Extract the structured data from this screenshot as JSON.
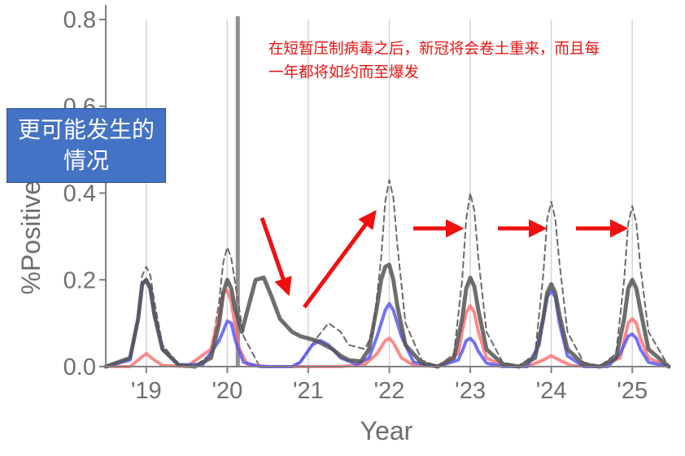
{
  "chart_data": {
    "type": "line",
    "title": "",
    "xlabel": "Year",
    "ylabel": "%Positive ILI",
    "ylim": [
      0,
      0.8
    ],
    "xlim": [
      2018.6,
      2025.55
    ],
    "yticks": [
      0.0,
      0.2,
      0.4,
      0.6,
      0.8
    ],
    "ytick_labels": [
      "0.0",
      "0.2",
      "0.4",
      "0.6",
      "0.8"
    ],
    "xticks": [
      2019.1,
      2020.1,
      2021.1,
      2022.1,
      2023.1,
      2024.1,
      2025.1
    ],
    "xtick_labels": [
      "'19",
      "'20",
      "'21",
      "'22",
      "'23",
      "'24",
      "'25"
    ],
    "grid": "vertical",
    "legend": "none",
    "intervention_line_x": 2020.23,
    "colors": {
      "dashed": "#6a6a6a",
      "total": "#555555",
      "red": "#ff6b6b",
      "blue": "#5b5bf0",
      "axis": "#808080",
      "grid": "#d4d4d4",
      "intervention": "#8f8f8f",
      "arrow": "#f01010"
    },
    "series": [
      {
        "style": "dashed",
        "x": [
          2018.6,
          2018.9,
          2019.0,
          2019.05,
          2019.1,
          2019.15,
          2019.2,
          2019.3,
          2019.5,
          2019.7,
          2019.9,
          2020.0,
          2020.05,
          2020.1,
          2020.15,
          2020.2,
          2020.25,
          2020.3,
          2020.5,
          2020.7,
          2020.9,
          2021.0,
          2021.2,
          2021.35,
          2021.5,
          2021.6,
          2021.8,
          2021.9,
          2022.0,
          2022.05,
          2022.1,
          2022.15,
          2022.2,
          2022.3,
          2022.5,
          2022.7,
          2022.9,
          2023.0,
          2023.05,
          2023.1,
          2023.15,
          2023.2,
          2023.3,
          2023.5,
          2023.7,
          2023.9,
          2024.0,
          2024.05,
          2024.1,
          2024.15,
          2024.2,
          2024.3,
          2024.5,
          2024.7,
          2024.9,
          2025.0,
          2025.05,
          2025.1,
          2025.15,
          2025.2,
          2025.3,
          2025.55
        ],
        "y": [
          0.0,
          0.02,
          0.12,
          0.21,
          0.23,
          0.21,
          0.15,
          0.05,
          0.005,
          0.0,
          0.03,
          0.15,
          0.24,
          0.275,
          0.25,
          0.19,
          0.13,
          0.07,
          0.0,
          0.0,
          0.0,
          0.01,
          0.065,
          0.1,
          0.08,
          0.05,
          0.04,
          0.08,
          0.25,
          0.38,
          0.43,
          0.39,
          0.28,
          0.1,
          0.015,
          0.0,
          0.03,
          0.2,
          0.34,
          0.4,
          0.36,
          0.25,
          0.08,
          0.01,
          0.0,
          0.03,
          0.21,
          0.34,
          0.38,
          0.34,
          0.24,
          0.08,
          0.01,
          0.0,
          0.03,
          0.2,
          0.33,
          0.37,
          0.33,
          0.23,
          0.08,
          0.0
        ]
      },
      {
        "style": "solid-dark",
        "x": [
          2018.6,
          2018.9,
          2019.0,
          2019.05,
          2019.1,
          2019.15,
          2019.2,
          2019.3,
          2019.5,
          2019.7,
          2019.9,
          2020.0,
          2020.05,
          2020.1,
          2020.15,
          2020.2,
          2020.28,
          2020.35,
          2020.45,
          2020.55,
          2020.65,
          2020.75,
          2020.9,
          2021.0,
          2021.1,
          2021.2,
          2021.3,
          2021.4,
          2021.5,
          2021.6,
          2021.75,
          2021.85,
          2021.95,
          2022.0,
          2022.05,
          2022.1,
          2022.15,
          2022.2,
          2022.3,
          2022.5,
          2022.7,
          2022.9,
          2023.0,
          2023.05,
          2023.1,
          2023.15,
          2023.2,
          2023.3,
          2023.5,
          2023.7,
          2023.9,
          2024.0,
          2024.05,
          2024.1,
          2024.15,
          2024.2,
          2024.3,
          2024.5,
          2024.7,
          2024.9,
          2025.0,
          2025.05,
          2025.1,
          2025.15,
          2025.2,
          2025.3,
          2025.55
        ],
        "y": [
          0.0,
          0.02,
          0.11,
          0.19,
          0.2,
          0.18,
          0.12,
          0.04,
          0.004,
          0.0,
          0.02,
          0.1,
          0.17,
          0.2,
          0.18,
          0.13,
          0.08,
          0.13,
          0.2,
          0.205,
          0.16,
          0.11,
          0.08,
          0.07,
          0.065,
          0.06,
          0.05,
          0.04,
          0.025,
          0.015,
          0.012,
          0.04,
          0.14,
          0.2,
          0.23,
          0.235,
          0.2,
          0.14,
          0.05,
          0.008,
          0.0,
          0.02,
          0.11,
          0.18,
          0.205,
          0.185,
          0.13,
          0.04,
          0.006,
          0.0,
          0.02,
          0.11,
          0.17,
          0.19,
          0.17,
          0.12,
          0.04,
          0.005,
          0.0,
          0.02,
          0.11,
          0.18,
          0.2,
          0.18,
          0.13,
          0.04,
          0.0
        ]
      },
      {
        "style": "solid-red",
        "x": [
          2018.6,
          2018.9,
          2019.0,
          2019.1,
          2019.2,
          2019.3,
          2019.6,
          2019.9,
          2020.0,
          2020.05,
          2020.1,
          2020.15,
          2020.2,
          2020.25,
          2020.35,
          2020.6,
          2021.0,
          2021.5,
          2021.8,
          2021.95,
          2022.05,
          2022.1,
          2022.15,
          2022.25,
          2022.4,
          2022.7,
          2022.95,
          2023.0,
          2023.05,
          2023.1,
          2023.15,
          2023.2,
          2023.3,
          2023.5,
          2023.8,
          2024.0,
          2024.1,
          2024.2,
          2024.35,
          2024.7,
          2024.95,
          2025.0,
          2025.05,
          2025.1,
          2025.15,
          2025.2,
          2025.3,
          2025.55
        ],
        "y": [
          0.0,
          0.0,
          0.015,
          0.03,
          0.015,
          0.003,
          0.0,
          0.04,
          0.12,
          0.17,
          0.175,
          0.15,
          0.09,
          0.04,
          0.005,
          0.0,
          0.0,
          0.0,
          0.005,
          0.03,
          0.06,
          0.065,
          0.055,
          0.02,
          0.003,
          0.0,
          0.03,
          0.08,
          0.125,
          0.14,
          0.125,
          0.08,
          0.02,
          0.002,
          0.0,
          0.015,
          0.025,
          0.015,
          0.002,
          0.0,
          0.02,
          0.06,
          0.1,
          0.11,
          0.1,
          0.065,
          0.02,
          0.0
        ]
      },
      {
        "style": "solid-blue",
        "x": [
          2018.6,
          2018.9,
          2019.0,
          2019.05,
          2019.1,
          2019.15,
          2019.2,
          2019.3,
          2019.5,
          2019.8,
          2020.0,
          2020.1,
          2020.15,
          2020.2,
          2020.3,
          2020.5,
          2020.9,
          2021.0,
          2021.15,
          2021.25,
          2021.35,
          2021.5,
          2021.7,
          2021.85,
          2021.95,
          2022.05,
          2022.1,
          2022.15,
          2022.25,
          2022.4,
          2022.7,
          2022.95,
          2023.0,
          2023.05,
          2023.1,
          2023.15,
          2023.2,
          2023.3,
          2023.5,
          2023.8,
          2023.95,
          2024.0,
          2024.05,
          2024.1,
          2024.15,
          2024.2,
          2024.3,
          2024.5,
          2024.8,
          2024.95,
          2025.05,
          2025.1,
          2025.15,
          2025.2,
          2025.3,
          2025.55
        ],
        "y": [
          0.0,
          0.015,
          0.11,
          0.19,
          0.2,
          0.18,
          0.12,
          0.04,
          0.004,
          0.005,
          0.06,
          0.105,
          0.1,
          0.06,
          0.01,
          0.0,
          0.0,
          0.01,
          0.05,
          0.06,
          0.05,
          0.02,
          0.005,
          0.02,
          0.07,
          0.13,
          0.145,
          0.13,
          0.07,
          0.01,
          0.0,
          0.015,
          0.035,
          0.06,
          0.065,
          0.055,
          0.035,
          0.008,
          0.0,
          0.0,
          0.05,
          0.11,
          0.16,
          0.175,
          0.16,
          0.1,
          0.025,
          0.0,
          0.0,
          0.03,
          0.07,
          0.075,
          0.065,
          0.04,
          0.01,
          0.0
        ]
      }
    ],
    "annotations": {
      "note": "在短暂压制病毒之后，新冠将会卷土重来，而且每一年都将如约而至爆发",
      "callout": "更可能发生的情况"
    }
  }
}
